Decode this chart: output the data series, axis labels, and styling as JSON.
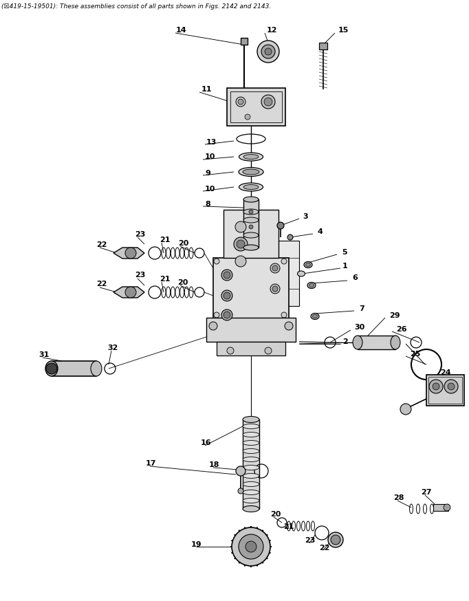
{
  "title_text": "(☒419-15-19501): These assemblies consist of all parts shown in Figs. 2142 and 2143.",
  "bg_color": "#ffffff",
  "fig_width": 6.82,
  "fig_height": 8.74,
  "dpi": 100
}
